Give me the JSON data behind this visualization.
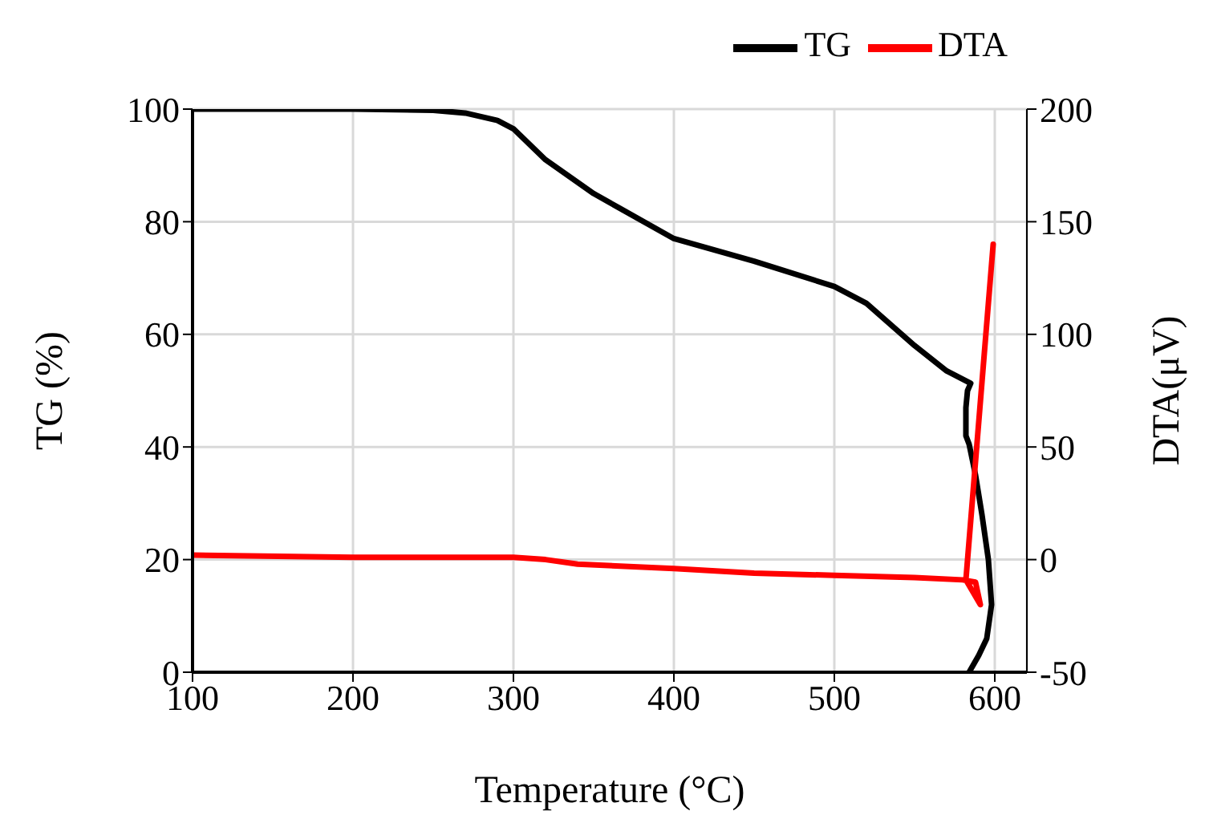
{
  "chart_data": {
    "type": "line",
    "xlabel": "Temperature (°C)",
    "ylabel": "TG (%)",
    "y2label": "DTA(μV)",
    "xlim": [
      100,
      620
    ],
    "xticks": [
      100,
      200,
      300,
      400,
      500,
      600
    ],
    "ylim": [
      0,
      100
    ],
    "yticks": [
      0,
      20,
      40,
      60,
      80,
      100
    ],
    "y2lim": [
      -50,
      200
    ],
    "y2ticks": [
      -50,
      0,
      50,
      100,
      150,
      200
    ],
    "grid": true,
    "legend": "top right",
    "marker": "none",
    "line_style": "solid",
    "series": [
      {
        "name": "TG",
        "color": "#000000",
        "x": [
          100,
          200,
          250,
          270,
          290,
          300,
          320,
          350,
          400,
          450,
          500,
          520,
          550,
          570,
          585,
          583,
          582,
          582,
          584,
          588,
          592,
          596,
          598,
          595,
          590,
          584
        ],
        "values": [
          100,
          100,
          99.8,
          99.3,
          98,
          96.5,
          91,
          85,
          77,
          73,
          68.5,
          65.5,
          58,
          53.5,
          51.3,
          50,
          47,
          42,
          40.5,
          35,
          28,
          20,
          12,
          6,
          3,
          0
        ]
      },
      {
        "name": "DTA",
        "color": "#ff0000",
        "axis": "y2",
        "x": [
          100,
          200,
          300,
          320,
          340,
          400,
          450,
          500,
          550,
          580,
          588,
          591,
          582,
          599
        ],
        "values": [
          2,
          1,
          1,
          0,
          -2,
          -4,
          -6,
          -7,
          -8,
          -9,
          -10,
          -20,
          -9,
          140
        ]
      }
    ]
  }
}
